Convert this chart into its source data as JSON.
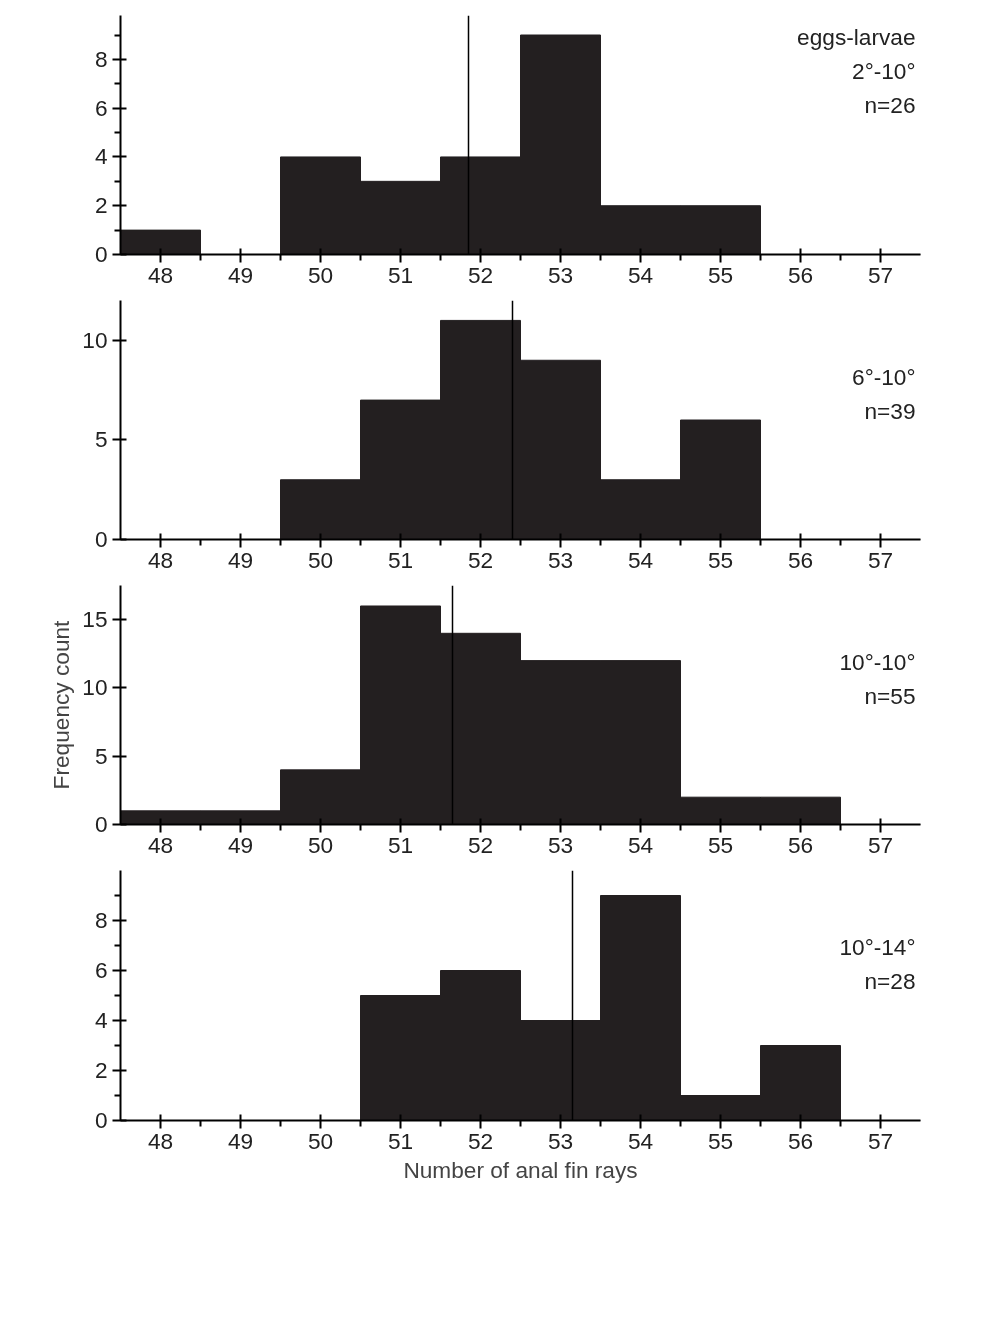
{
  "chart_data": [
    {
      "type": "histogram",
      "bins": [
        47.5,
        48.5,
        49.5,
        50.5,
        51.5,
        52.5,
        53.5,
        54.5,
        55.5,
        56.5,
        57.5
      ],
      "values": [
        1,
        0,
        4,
        3,
        4,
        9,
        2,
        2,
        0,
        0
      ],
      "color": "#231f20",
      "xlim": [
        47.5,
        57.5
      ],
      "ylim": [
        0,
        9.8
      ],
      "xticks": [
        48,
        49,
        50,
        51,
        52,
        53,
        54,
        55,
        56,
        57,
        {
          "value": 48.5,
          "label": null
        },
        {
          "value": 49.5,
          "label": null
        },
        {
          "value": 50.5,
          "label": null
        },
        {
          "value": 51.5,
          "label": null
        },
        {
          "value": 52.5,
          "label": null
        },
        {
          "value": 53.5,
          "label": null
        },
        {
          "value": 54.5,
          "label": null
        },
        {
          "value": 55.5,
          "label": null
        },
        {
          "value": 56.5,
          "label": null
        }
      ],
      "yticks": [
        0,
        2,
        4,
        6,
        8,
        {
          "value": 1,
          "label": null
        },
        {
          "value": 3,
          "label": null
        },
        {
          "value": 5,
          "label": null
        },
        {
          "value": 7,
          "label": null
        },
        {
          "value": 9,
          "label": null
        }
      ],
      "ref_lines": [
        {
          "axis": "x",
          "value": 51.85,
          "color": "#000000"
        }
      ],
      "annotations": [
        "eggs-larvae",
        "2°-10°",
        "n=26"
      ],
      "grid": false
    },
    {
      "type": "histogram",
      "bins": [
        47.5,
        48.5,
        49.5,
        50.5,
        51.5,
        52.5,
        53.5,
        54.5,
        55.5,
        56.5,
        57.5
      ],
      "values": [
        0,
        0,
        3,
        7,
        11,
        9,
        3,
        6,
        0,
        0
      ],
      "color": "#231f20",
      "xlim": [
        47.5,
        57.5
      ],
      "ylim": [
        0,
        12
      ],
      "xticks": [
        48,
        49,
        50,
        51,
        52,
        53,
        54,
        55,
        56,
        57,
        {
          "value": 48.5,
          "label": null
        },
        {
          "value": 49.5,
          "label": null
        },
        {
          "value": 50.5,
          "label": null
        },
        {
          "value": 51.5,
          "label": null
        },
        {
          "value": 52.5,
          "label": null
        },
        {
          "value": 53.5,
          "label": null
        },
        {
          "value": 54.5,
          "label": null
        },
        {
          "value": 55.5,
          "label": null
        },
        {
          "value": 56.5,
          "label": null
        }
      ],
      "yticks": [
        0,
        5,
        10
      ],
      "ref_lines": [
        {
          "axis": "x",
          "value": 52.4,
          "color": "#000000"
        }
      ],
      "annotations": [
        "6°-10°",
        "n=39"
      ],
      "grid": false
    },
    {
      "type": "histogram",
      "bins": [
        47.5,
        48.5,
        49.5,
        50.5,
        51.5,
        52.5,
        53.5,
        54.5,
        55.5,
        56.5,
        57.5
      ],
      "values": [
        1,
        1,
        4,
        16,
        14,
        12,
        12,
        2,
        2,
        0
      ],
      "color": "#231f20",
      "xlim": [
        47.5,
        57.5
      ],
      "ylim": [
        0,
        17.5
      ],
      "xticks": [
        48,
        49,
        50,
        51,
        52,
        53,
        54,
        55,
        56,
        57,
        {
          "value": 48.5,
          "label": null
        },
        {
          "value": 49.5,
          "label": null
        },
        {
          "value": 50.5,
          "label": null
        },
        {
          "value": 51.5,
          "label": null
        },
        {
          "value": 52.5,
          "label": null
        },
        {
          "value": 53.5,
          "label": null
        },
        {
          "value": 54.5,
          "label": null
        },
        {
          "value": 55.5,
          "label": null
        },
        {
          "value": 56.5,
          "label": null
        }
      ],
      "yticks": [
        0,
        5,
        10,
        15
      ],
      "ylabel": "Frequency count",
      "ref_lines": [
        {
          "axis": "x",
          "value": 51.65,
          "color": "#000000"
        }
      ],
      "annotations": [
        "10°-10°",
        "n=55"
      ],
      "grid": false
    },
    {
      "type": "histogram",
      "bins": [
        47.5,
        48.5,
        49.5,
        50.5,
        51.5,
        52.5,
        53.5,
        54.5,
        55.5,
        56.5,
        57.5
      ],
      "values": [
        0,
        0,
        0,
        5,
        6,
        4,
        9,
        1,
        3,
        0
      ],
      "color": "#231f20",
      "xlim": [
        47.5,
        57.5
      ],
      "ylim": [
        0,
        10
      ],
      "xticks": [
        48,
        49,
        50,
        51,
        52,
        53,
        54,
        55,
        56,
        57,
        {
          "value": 48.5,
          "label": null
        },
        {
          "value": 49.5,
          "label": null
        },
        {
          "value": 50.5,
          "label": null
        },
        {
          "value": 51.5,
          "label": null
        },
        {
          "value": 52.5,
          "label": null
        },
        {
          "value": 53.5,
          "label": null
        },
        {
          "value": 54.5,
          "label": null
        },
        {
          "value": 55.5,
          "label": null
        },
        {
          "value": 56.5,
          "label": null
        }
      ],
      "yticks": [
        0,
        2,
        4,
        6,
        8,
        {
          "value": 1,
          "label": null
        },
        {
          "value": 3,
          "label": null
        },
        {
          "value": 5,
          "label": null
        },
        {
          "value": 7,
          "label": null
        },
        {
          "value": 9,
          "label": null
        }
      ],
      "xlabel": "Number of anal fin rays",
      "ref_lines": [
        {
          "axis": "x",
          "value": 53.15,
          "color": "#000000"
        }
      ],
      "annotations": [
        "10°-14°",
        "n=28"
      ],
      "grid": false
    }
  ]
}
